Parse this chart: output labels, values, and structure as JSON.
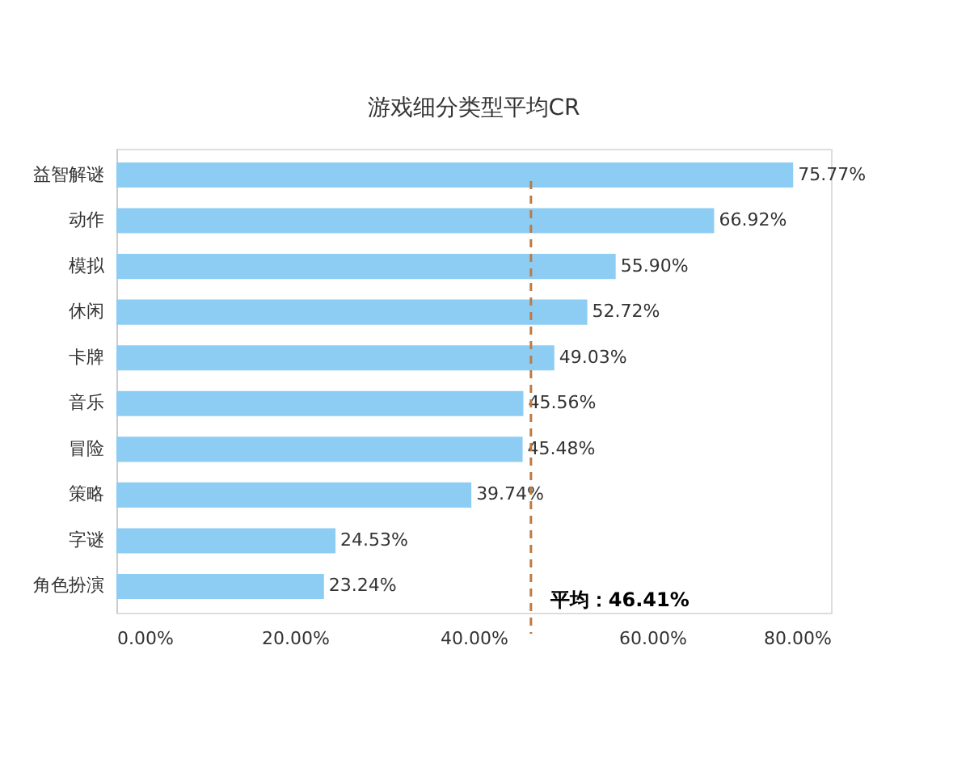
{
  "chart_data": {
    "type": "bar",
    "orientation": "horizontal",
    "title": "游戏细分类型平均CR",
    "categories": [
      "益智解谜",
      "动作",
      "模拟",
      "休闲",
      "卡牌",
      "音乐",
      "冒险",
      "策略",
      "字谜",
      "角色扮演"
    ],
    "values": [
      75.77,
      66.92,
      55.9,
      52.72,
      49.03,
      45.56,
      45.48,
      39.74,
      24.53,
      23.24
    ],
    "value_labels": [
      "75.77%",
      "66.92%",
      "55.90%",
      "52.72%",
      "49.03%",
      "45.56%",
      "45.48%",
      "39.74%",
      "24.53%",
      "23.24%"
    ],
    "color": "#8dcdf4",
    "xlim": [
      0,
      80
    ],
    "xticks": [
      {
        "value": 0,
        "label": "0.00%"
      },
      {
        "value": 20,
        "label": "20.00%"
      },
      {
        "value": 40,
        "label": "40.00%"
      },
      {
        "value": 60,
        "label": "60.00%"
      },
      {
        "value": 80,
        "label": "80.00%"
      }
    ],
    "ref_lines": [
      {
        "axis": "x",
        "value": 46.41,
        "label": "平均：46.41%",
        "color": "#c07a40",
        "line_style": "dashed"
      }
    ],
    "grid": false
  }
}
